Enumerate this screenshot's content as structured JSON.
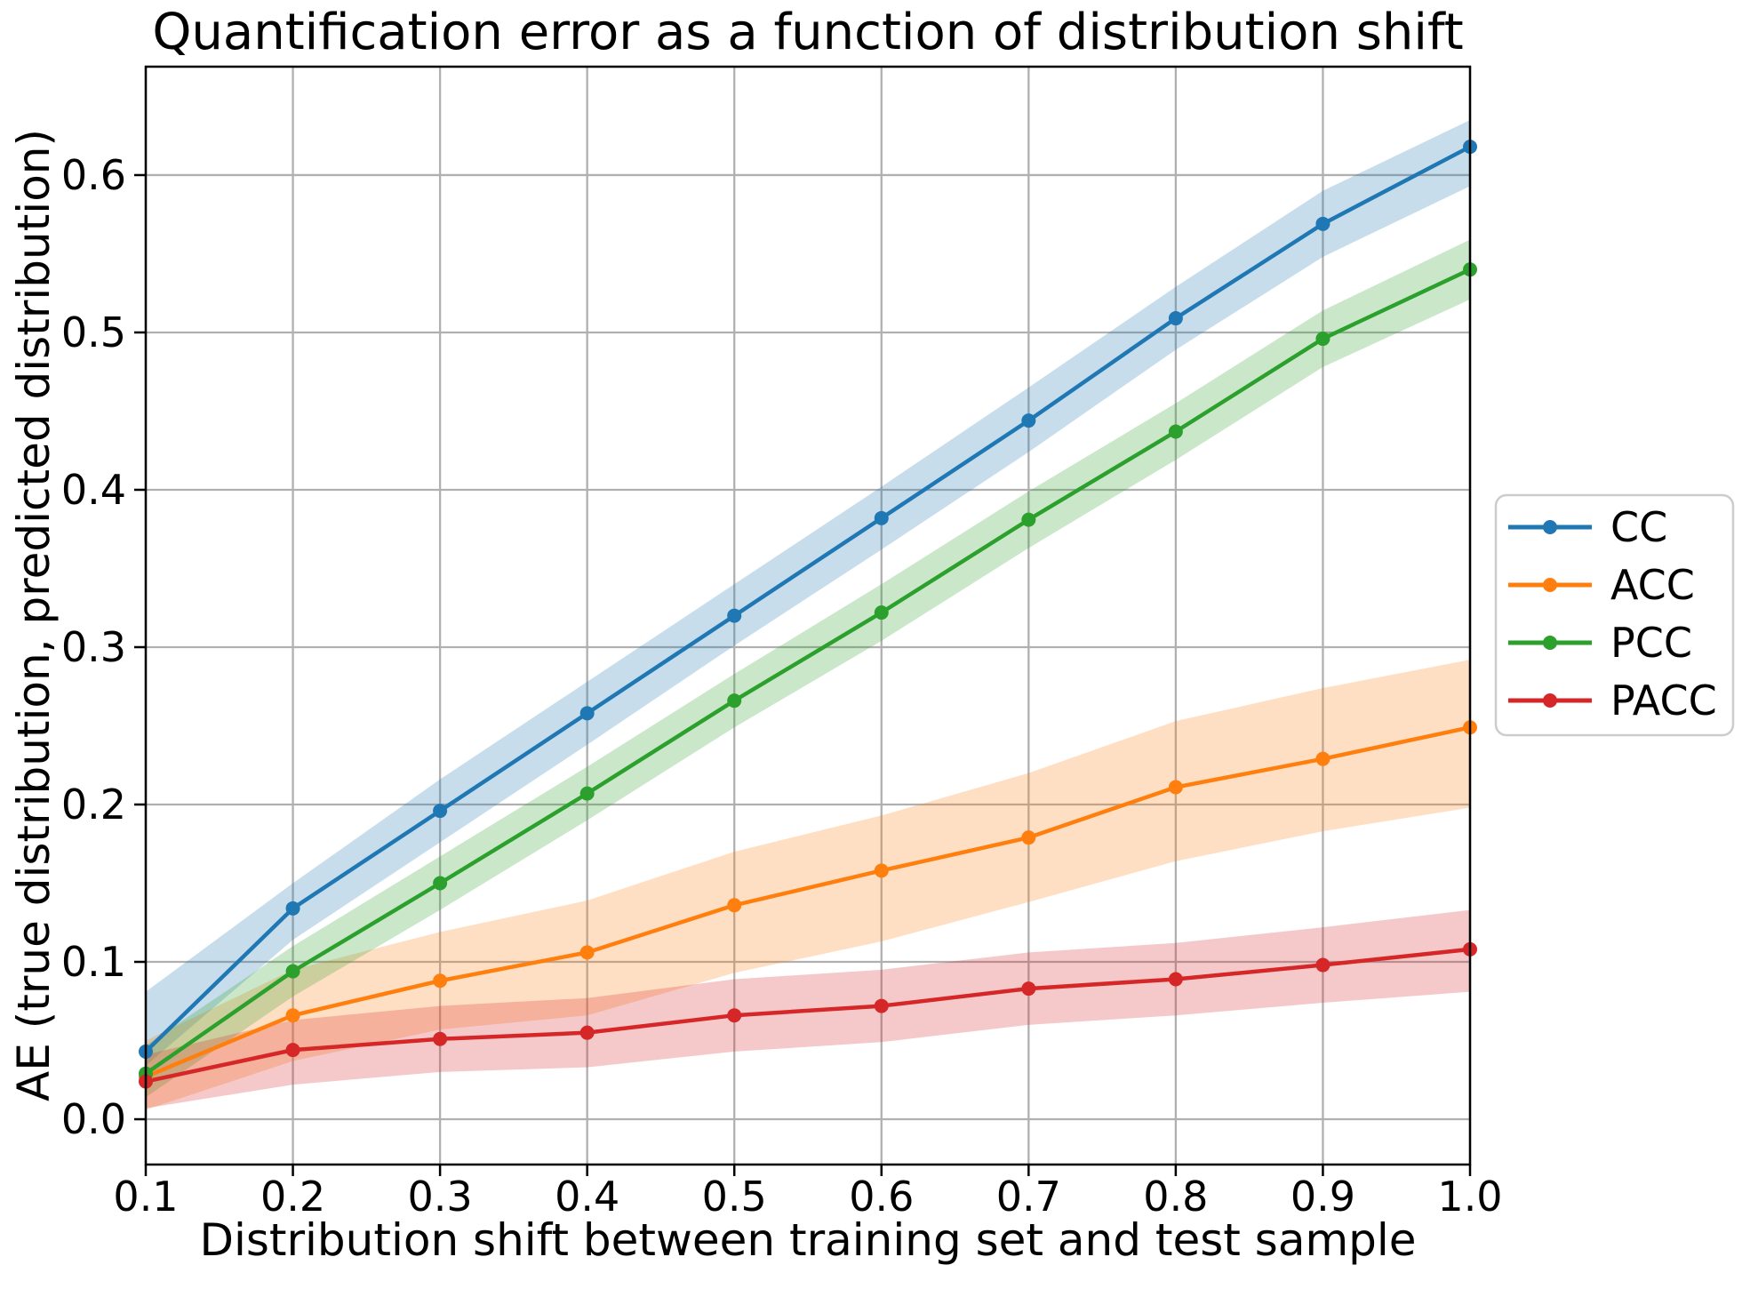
{
  "chart_data": {
    "type": "line",
    "title": "Quantification error as a function of distribution shift",
    "xlabel": "Distribution shift between training set and test sample",
    "ylabel": "AE (true distribution, predicted distribution)",
    "x": [
      0.1,
      0.2,
      0.3,
      0.4,
      0.5,
      0.6,
      0.7,
      0.8,
      0.9,
      1.0
    ],
    "x_tick_labels": [
      "0.1",
      "0.2",
      "0.3",
      "0.4",
      "0.5",
      "0.6",
      "0.7",
      "0.8",
      "0.9",
      "1.0"
    ],
    "y_ticks": [
      0.0,
      0.1,
      0.2,
      0.3,
      0.4,
      0.5,
      0.6
    ],
    "y_tick_labels": [
      "0.0",
      "0.1",
      "0.2",
      "0.3",
      "0.4",
      "0.5",
      "0.6"
    ],
    "xlim": [
      0.1,
      1.0
    ],
    "ylim": [
      -0.0288,
      0.6689
    ],
    "grid": true,
    "grid_color": "#b0b0b0",
    "spine_color": "#000000",
    "band_alpha": 0.25,
    "marker": "circle",
    "legend_position": "right-outside",
    "legend_border_color": "#cccccc",
    "series": [
      {
        "name": "CC",
        "color": "#1f77b4",
        "values": [
          0.043,
          0.134,
          0.196,
          0.258,
          0.32,
          0.382,
          0.444,
          0.509,
          0.569,
          0.618
        ],
        "band_upper": [
          0.081,
          0.15,
          0.216,
          0.278,
          0.34,
          0.402,
          0.465,
          0.529,
          0.59,
          0.635
        ],
        "band_lower": [
          0.034,
          0.114,
          0.176,
          0.238,
          0.301,
          0.362,
          0.424,
          0.489,
          0.548,
          0.593
        ]
      },
      {
        "name": "ACC",
        "color": "#ff7f0e",
        "values": [
          0.027,
          0.066,
          0.088,
          0.106,
          0.136,
          0.158,
          0.179,
          0.211,
          0.229,
          0.249
        ],
        "band_upper": [
          0.05,
          0.095,
          0.119,
          0.139,
          0.17,
          0.193,
          0.22,
          0.253,
          0.274,
          0.292
        ],
        "band_lower": [
          0.006,
          0.037,
          0.057,
          0.066,
          0.093,
          0.113,
          0.138,
          0.164,
          0.183,
          0.198
        ]
      },
      {
        "name": "PCC",
        "color": "#2ca02c",
        "values": [
          0.029,
          0.094,
          0.15,
          0.207,
          0.266,
          0.322,
          0.381,
          0.437,
          0.496,
          0.54
        ],
        "band_upper": [
          0.047,
          0.11,
          0.167,
          0.224,
          0.283,
          0.34,
          0.399,
          0.455,
          0.514,
          0.559
        ],
        "band_lower": [
          0.014,
          0.078,
          0.133,
          0.19,
          0.249,
          0.304,
          0.363,
          0.419,
          0.478,
          0.521
        ]
      },
      {
        "name": "PACC",
        "color": "#d62728",
        "values": [
          0.024,
          0.044,
          0.051,
          0.055,
          0.066,
          0.072,
          0.083,
          0.089,
          0.098,
          0.108
        ],
        "band_upper": [
          0.041,
          0.063,
          0.072,
          0.077,
          0.089,
          0.095,
          0.106,
          0.112,
          0.122,
          0.133
        ],
        "band_lower": [
          0.007,
          0.022,
          0.03,
          0.033,
          0.043,
          0.049,
          0.06,
          0.066,
          0.074,
          0.081
        ]
      }
    ]
  }
}
